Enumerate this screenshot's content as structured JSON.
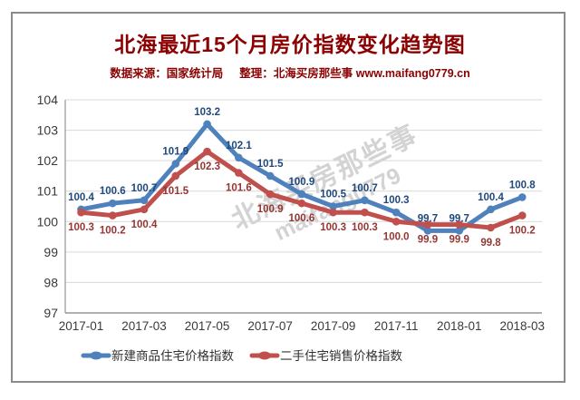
{
  "header": {
    "title": "北海最近15个月房价指数变化趋势图",
    "source": "数据来源：国家统计局",
    "editor": "整理：北海买房那些事 www.maifang0779.cn",
    "title_color": "#8B0000"
  },
  "watermark": {
    "line1": "北海买房那些事",
    "line2": "maifang0779"
  },
  "chart_data": {
    "type": "line",
    "title": "北海最近15个月房价指数变化趋势图",
    "x_tick_labels": [
      "2017-01",
      "2017-03",
      "2017-05",
      "2017-07",
      "2017-09",
      "2017-11",
      "2018-01",
      "2018-03"
    ],
    "x_tick_month_indexes": [
      0,
      2,
      4,
      6,
      8,
      10,
      12,
      14
    ],
    "n_points": 15,
    "series": [
      {
        "name": "新建商品住宅价格指数",
        "color": "#4F81BD",
        "label_color": "#1F497D",
        "label_side": "above",
        "values": [
          100.4,
          100.6,
          100.7,
          101.9,
          103.2,
          102.1,
          101.5,
          100.9,
          100.5,
          100.7,
          100.3,
          99.7,
          99.7,
          100.4,
          100.8
        ]
      },
      {
        "name": "二手住宅销售价格指数",
        "color": "#C0504D",
        "label_color": "#943634",
        "label_side": "below",
        "values": [
          100.3,
          100.2,
          100.4,
          101.5,
          102.3,
          101.6,
          100.9,
          100.6,
          100.3,
          100.3,
          100.0,
          99.9,
          99.9,
          99.8,
          100.2
        ]
      }
    ],
    "y_ticks": [
      97,
      98,
      99,
      100,
      101,
      102,
      103,
      104
    ],
    "ylim": [
      97,
      104
    ],
    "grid": true,
    "legend_position": "bottom",
    "colors": {
      "gridline": "#D9D9D9",
      "axis_line": "#9E9E9E",
      "bottom_axis_line": "#808080",
      "tick_label": "#3A3A3A",
      "legend_label": "#333333"
    }
  }
}
